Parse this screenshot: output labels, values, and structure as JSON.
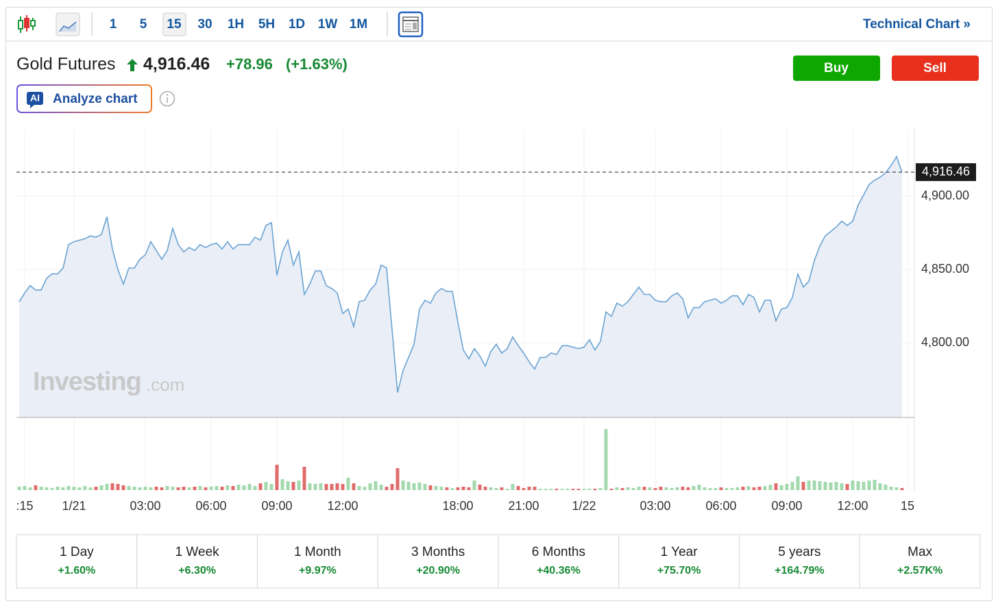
{
  "toolbar": {
    "intervals": [
      "1",
      "5",
      "15",
      "30",
      "1H",
      "5H",
      "1D",
      "1W",
      "1M"
    ],
    "selected": "15",
    "technical_chart": "Technical Chart »"
  },
  "header": {
    "name": "Gold Futures",
    "price": "4,916.46",
    "change": "+78.96",
    "change_percent": "(+1.63%)",
    "buy": "Buy",
    "sell": "Sell",
    "ai_badge": "AI",
    "analyze": "Analyze chart"
  },
  "watermark": {
    "brand": "Investing",
    "domain": ".com"
  },
  "chart_data": {
    "type": "area",
    "categories": [
      null,
      ":15",
      null,
      null,
      null,
      null,
      null,
      null,
      null,
      null,
      "1/21",
      null,
      null,
      null,
      null,
      null,
      null,
      null,
      null,
      null,
      null,
      null,
      null,
      "03:00",
      null,
      null,
      null,
      null,
      null,
      null,
      null,
      null,
      null,
      null,
      null,
      "06:00",
      null,
      null,
      null,
      null,
      null,
      null,
      null,
      null,
      null,
      null,
      null,
      "09:00",
      null,
      null,
      null,
      null,
      null,
      null,
      null,
      null,
      null,
      null,
      null,
      "12:00",
      null,
      null,
      null,
      null,
      null,
      null,
      null,
      null,
      null,
      null,
      null,
      null,
      null,
      null,
      null,
      null,
      null,
      null,
      null,
      null,
      "18:00",
      null,
      null,
      null,
      null,
      null,
      null,
      null,
      null,
      null,
      null,
      null,
      "21:00",
      null,
      null,
      null,
      null,
      null,
      null,
      null,
      null,
      null,
      null,
      "1/22",
      null,
      null,
      null,
      null,
      null,
      null,
      null,
      null,
      null,
      null,
      null,
      null,
      "03:00",
      null,
      null,
      null,
      null,
      null,
      null,
      null,
      null,
      null,
      null,
      null,
      "06:00",
      null,
      null,
      null,
      null,
      null,
      null,
      null,
      null,
      null,
      null,
      null,
      "09:00",
      null,
      null,
      null,
      null,
      null,
      null,
      null,
      null,
      null,
      null,
      null,
      "12:00",
      null,
      null,
      null,
      null,
      null,
      null,
      null,
      null,
      null,
      "15"
    ],
    "values": [
      4828,
      4834,
      4839,
      4836,
      4836,
      4844,
      4847,
      4847,
      4851,
      4867,
      4869,
      4870,
      4871,
      4873,
      4872,
      4874,
      4886,
      4864,
      4850,
      4840,
      4851,
      4851,
      4857,
      4860,
      4869,
      4863,
      4857,
      4863,
      4878,
      4867,
      4862,
      4865,
      4863,
      4867,
      4865,
      4867,
      4868,
      4864,
      4869,
      4864,
      4867,
      4867,
      4867,
      4872,
      4870,
      4880,
      4882,
      4846,
      4862,
      4870,
      4853,
      4862,
      4833,
      4840,
      4849,
      4849,
      4839,
      4837,
      4834,
      4820,
      4823,
      4811,
      4828,
      4829,
      4836,
      4840,
      4853,
      4851,
      4809,
      4766,
      4781,
      4790,
      4799,
      4823,
      4829,
      4827,
      4834,
      4837,
      4835,
      4835,
      4814,
      4795,
      4789,
      4796,
      4791,
      4784,
      4794,
      4799,
      4793,
      4796,
      4804,
      4798,
      4793,
      4787,
      4782,
      4790,
      4790,
      4793,
      4792,
      4798,
      4798,
      4797,
      4796,
      4797,
      4802,
      4795,
      4801,
      4821,
      4818,
      4827,
      4825,
      4828,
      4833,
      4838,
      4833,
      4833,
      4829,
      4828,
      4828,
      4832,
      4834,
      4830,
      4817,
      4824,
      4824,
      4828,
      4829,
      4830,
      4827,
      4829,
      4832,
      4832,
      4826,
      4833,
      4831,
      4821,
      4829,
      4829,
      4815,
      4823,
      4824,
      4831,
      4847,
      4838,
      4842,
      4856,
      4866,
      4873,
      4876,
      4879,
      4883,
      4880,
      4883,
      4894,
      4901,
      4908,
      4911,
      4913,
      4916,
      4921,
      4927,
      4916.46,
      null
    ],
    "volume": [
      5,
      6,
      4,
      7,
      5,
      4,
      3,
      5,
      4,
      6,
      5,
      4,
      6,
      4,
      5,
      7,
      9,
      10,
      9,
      7,
      6,
      5,
      4,
      5,
      4,
      5,
      4,
      6,
      5,
      4,
      5,
      4,
      5,
      6,
      4,
      5,
      6,
      5,
      7,
      6,
      8,
      7,
      9,
      6,
      10,
      12,
      9,
      37,
      16,
      13,
      12,
      14,
      34,
      10,
      9,
      10,
      9,
      9,
      10,
      9,
      18,
      10,
      6,
      5,
      10,
      13,
      8,
      5,
      9,
      32,
      14,
      12,
      10,
      11,
      9,
      7,
      6,
      5,
      4,
      3,
      4,
      5,
      4,
      14,
      8,
      5,
      4,
      3,
      4,
      2,
      9,
      6,
      3,
      5,
      5,
      2,
      2,
      2,
      2,
      2,
      2,
      2,
      2,
      2,
      2,
      2,
      3,
      89,
      2,
      4,
      3,
      4,
      3,
      5,
      5,
      4,
      3,
      5,
      4,
      3,
      4,
      5,
      4,
      6,
      8,
      4,
      3,
      3,
      4,
      3,
      3,
      4,
      5,
      6,
      4,
      5,
      6,
      8,
      10,
      7,
      9,
      12,
      20,
      12,
      14,
      14,
      13,
      12,
      11,
      12,
      10,
      9,
      14,
      13,
      12,
      14,
      15,
      10,
      8,
      5,
      4,
      3,
      null
    ],
    "color": "#6aa3d2",
    "fill": "#e9eef7",
    "up_color": "#a3d9ae",
    "down_color": "#e16c6c",
    "ylim": [
      4749,
      4946
    ],
    "yticks": [
      {
        "value": 4800,
        "label": "4,800.00"
      },
      {
        "value": 4850,
        "label": "4,850.00"
      },
      {
        "value": 4900,
        "label": "4,900.00"
      }
    ],
    "price_line": {
      "value": 4916.46,
      "label": "4,916.46"
    },
    "grid": true
  },
  "periods": [
    {
      "label": "1 Day",
      "change": "+1.60%"
    },
    {
      "label": "1 Week",
      "change": "+6.30%"
    },
    {
      "label": "1 Month",
      "change": "+9.97%"
    },
    {
      "label": "3 Months",
      "change": "+20.90%"
    },
    {
      "label": "6 Months",
      "change": "+40.36%"
    },
    {
      "label": "1 Year",
      "change": "+75.70%"
    },
    {
      "label": "5 years",
      "change": "+164.79%"
    },
    {
      "label": "Max",
      "change": "+2.57K%"
    }
  ]
}
